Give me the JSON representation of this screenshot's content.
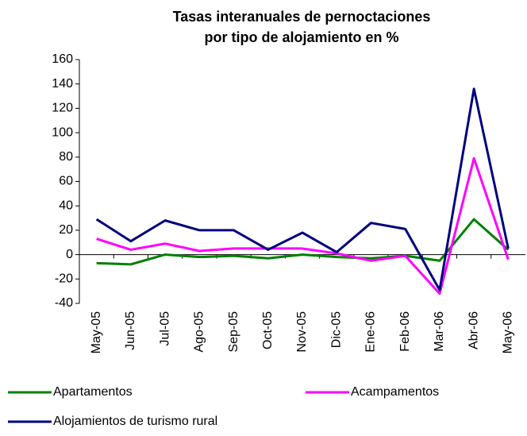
{
  "chart_data": {
    "type": "line",
    "title": [
      "Tasas interanuales de pernoctaciones",
      "por tipo de alojamiento en %"
    ],
    "categories": [
      "May-05",
      "Jun-05",
      "Jul-05",
      "Ago-05",
      "Sep-05",
      "Oct-05",
      "Nov-05",
      "Dic-05",
      "Ene-06",
      "Feb-06",
      "Mar-06",
      "Abr-06",
      "May-06"
    ],
    "series": [
      {
        "name": "Apartamentos",
        "color": "#008000",
        "values": [
          -7,
          -8,
          0,
          -2,
          -1,
          -3,
          0,
          -2,
          -3,
          -1,
          -5,
          29,
          4
        ]
      },
      {
        "name": "Acampamentos",
        "color": "#ff00ff",
        "values": [
          13,
          4,
          9,
          3,
          5,
          5,
          5,
          1,
          -5,
          -1,
          -32,
          79,
          -4
        ]
      },
      {
        "name": "Alojamientos de turismo rural",
        "color": "#000080",
        "values": [
          29,
          11,
          28,
          20,
          20,
          4,
          18,
          2,
          26,
          21,
          -29,
          136,
          5
        ]
      }
    ],
    "ylim": [
      -40,
      160
    ],
    "yticks": [
      -40,
      -20,
      0,
      20,
      40,
      60,
      80,
      100,
      120,
      140,
      160
    ],
    "grid": false
  }
}
